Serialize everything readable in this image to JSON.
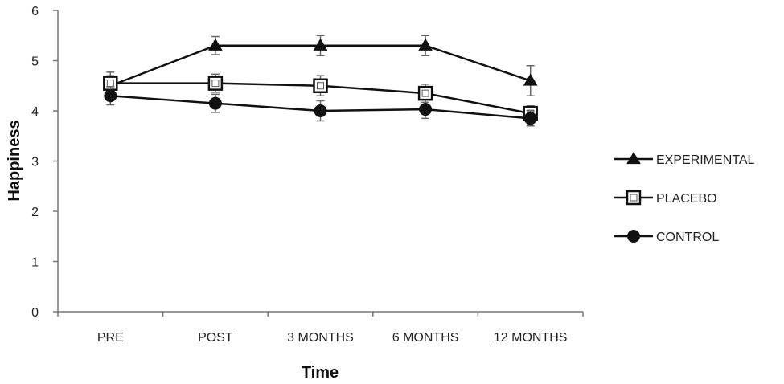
{
  "chart_data": {
    "type": "line",
    "categories": [
      "PRE",
      "POST",
      "3 MONTHS",
      "6 MONTHS",
      "12 MONTHS"
    ],
    "xlabel": "Time",
    "ylabel": "Happiness",
    "ylim": [
      0,
      6
    ],
    "yticks": [
      "0",
      "1",
      "2",
      "3",
      "4",
      "5",
      "6"
    ],
    "grid": false,
    "legend_position": "right",
    "series": [
      {
        "name": "EXPERIMENTAL",
        "marker": "triangle-filled",
        "color": "#111111",
        "values": [
          4.5,
          5.3,
          5.3,
          5.3,
          4.6
        ],
        "error": [
          0.2,
          0.18,
          0.2,
          0.2,
          0.3
        ]
      },
      {
        "name": "PLACEBO",
        "marker": "square-open",
        "color": "#111111",
        "values": [
          4.55,
          4.55,
          4.5,
          4.35,
          3.95
        ],
        "error": [
          0.22,
          0.18,
          0.2,
          0.18,
          0.15
        ]
      },
      {
        "name": "CONTROL",
        "marker": "circle-filled",
        "color": "#111111",
        "values": [
          4.3,
          4.15,
          4.0,
          4.03,
          3.85
        ],
        "error": [
          0.18,
          0.18,
          0.2,
          0.18,
          0.15
        ]
      }
    ]
  }
}
